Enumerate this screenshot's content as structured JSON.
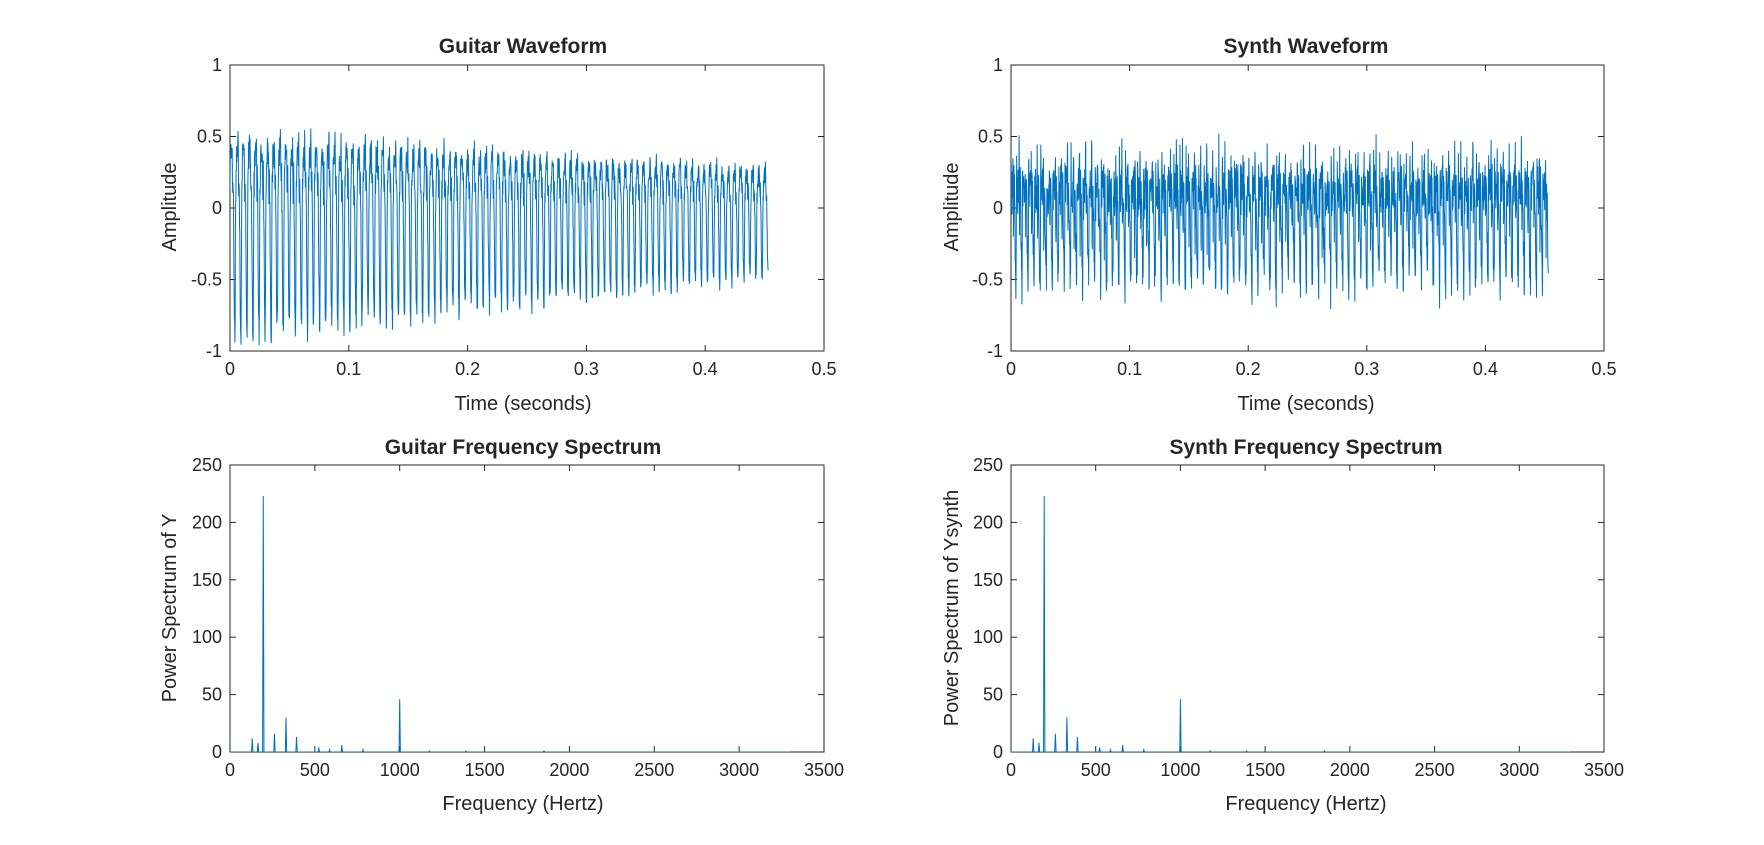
{
  "colors": {
    "line": "#0072BD",
    "axis": "#262626",
    "background": "#ffffff"
  },
  "chart_data": [
    {
      "type": "line",
      "title": "Guitar Waveform",
      "xlabel": "Time (seconds)",
      "ylabel": "Amplitude",
      "xlim": [
        0,
        0.5
      ],
      "ylim": [
        -1,
        1
      ],
      "xticks": [
        0,
        0.1,
        0.2,
        0.3,
        0.4,
        0.5
      ],
      "xtick_labels": [
        "0",
        "0.1",
        "0.2",
        "0.3",
        "0.4",
        "0.5"
      ],
      "yticks": [
        -1,
        -0.5,
        0,
        0.5,
        1
      ],
      "ytick_labels": [
        "-1",
        "-0.5",
        "0",
        "0.5",
        "1"
      ],
      "grid": false,
      "signal": {
        "kind": "decaying-waveform",
        "t_end": 0.453,
        "fundamental_hz": 196,
        "start_amplitude": 1.0,
        "end_amplitude": 0.55
      }
    },
    {
      "type": "line",
      "title": "Synth Waveform",
      "xlabel": "Time (seconds)",
      "ylabel": "Amplitude",
      "xlim": [
        0,
        0.5
      ],
      "ylim": [
        -1,
        1
      ],
      "xticks": [
        0,
        0.1,
        0.2,
        0.3,
        0.4,
        0.5
      ],
      "xtick_labels": [
        "0",
        "0.1",
        "0.2",
        "0.3",
        "0.4",
        "0.5"
      ],
      "yticks": [
        -1,
        -0.5,
        0,
        0.5,
        1
      ],
      "ytick_labels": [
        "-1",
        "-0.5",
        "0",
        "0.5",
        "1"
      ],
      "grid": false,
      "signal": {
        "kind": "steady-waveform",
        "t_end": 0.453,
        "fundamental_hz": 196,
        "start_amplitude": 0.72,
        "end_amplitude": 0.7
      }
    },
    {
      "type": "line",
      "title": "Guitar Frequency Spectrum",
      "xlabel": "Frequency (Hertz)",
      "ylabel": "Power Spectrum of Y",
      "xlim": [
        0,
        3500
      ],
      "ylim": [
        0,
        250
      ],
      "xticks": [
        0,
        500,
        1000,
        1500,
        2000,
        2500,
        3000,
        3500
      ],
      "xtick_labels": [
        "0",
        "500",
        "1000",
        "1500",
        "2000",
        "2500",
        "3000",
        "3500"
      ],
      "yticks": [
        0,
        50,
        100,
        150,
        200,
        250
      ],
      "ytick_labels": [
        "0",
        "50",
        "100",
        "150",
        "200",
        "250"
      ],
      "grid": false,
      "x_end": 3300,
      "peaks": [
        {
          "f": 131,
          "p": 12
        },
        {
          "f": 165,
          "p": 8
        },
        {
          "f": 196,
          "p": 223
        },
        {
          "f": 262,
          "p": 16
        },
        {
          "f": 330,
          "p": 30
        },
        {
          "f": 392,
          "p": 13
        },
        {
          "f": 523,
          "p": 4
        },
        {
          "f": 587,
          "p": 2
        },
        {
          "f": 659,
          "p": 6
        },
        {
          "f": 784,
          "p": 2
        },
        {
          "f": 1000,
          "p": 46
        },
        {
          "f": 1175,
          "p": 1
        },
        {
          "f": 1390,
          "p": 1
        },
        {
          "f": 1500,
          "p": 1
        },
        {
          "f": 1850,
          "p": 1
        }
      ]
    },
    {
      "type": "line",
      "title": "Synth Frequency Spectrum",
      "xlabel": "Frequency (Hertz)",
      "ylabel": "Power Spectrum of Ysynth",
      "xlim": [
        0,
        3500
      ],
      "ylim": [
        0,
        250
      ],
      "xticks": [
        0,
        500,
        1000,
        1500,
        2000,
        2500,
        3000,
        3500
      ],
      "xtick_labels": [
        "0",
        "500",
        "1000",
        "1500",
        "2000",
        "2500",
        "3000",
        "3500"
      ],
      "yticks": [
        0,
        50,
        100,
        150,
        200,
        250
      ],
      "ytick_labels": [
        "0",
        "50",
        "100",
        "150",
        "200",
        "250"
      ],
      "grid": false,
      "x_end": 3300,
      "peaks": [
        {
          "f": 131,
          "p": 12
        },
        {
          "f": 165,
          "p": 8
        },
        {
          "f": 196,
          "p": 223
        },
        {
          "f": 262,
          "p": 16
        },
        {
          "f": 330,
          "p": 30
        },
        {
          "f": 392,
          "p": 13
        },
        {
          "f": 523,
          "p": 4
        },
        {
          "f": 587,
          "p": 2
        },
        {
          "f": 659,
          "p": 6
        },
        {
          "f": 784,
          "p": 2
        },
        {
          "f": 1000,
          "p": 46
        },
        {
          "f": 1175,
          "p": 1
        },
        {
          "f": 1390,
          "p": 1
        },
        {
          "f": 1500,
          "p": 1
        },
        {
          "f": 1850,
          "p": 1
        }
      ]
    }
  ]
}
